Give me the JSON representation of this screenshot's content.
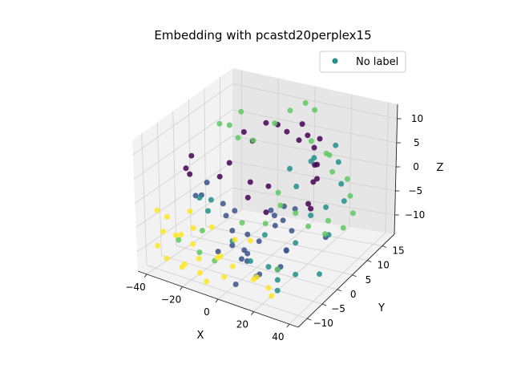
{
  "chart_data": {
    "type": "scatter",
    "projection": "3d",
    "title": "Embedding with pcastd20perplex15",
    "xlabel": "X",
    "ylabel": "Y",
    "zlabel": "Z",
    "xlim": [
      -45,
      45
    ],
    "ylim": [
      -13,
      19
    ],
    "zlim": [
      -14,
      13
    ],
    "x_ticks": [
      -40,
      -20,
      0,
      20,
      40
    ],
    "y_ticks": [
      -10,
      -5,
      0,
      5,
      10,
      15
    ],
    "z_ticks": [
      -10,
      -5,
      0,
      5,
      10
    ],
    "grid": true,
    "legend": {
      "placement": "top-right",
      "entries": [
        "No label"
      ]
    },
    "legend_marker_color": "#21918c",
    "palette": [
      "#440154",
      "#3b528b",
      "#21918c",
      "#5ec962",
      "#fde725"
    ],
    "series": [
      {
        "name": "No label",
        "points": [
          [
            -30,
            -5,
            5,
            0
          ],
          [
            -28,
            -5,
            4,
            0
          ],
          [
            -32,
            -2,
            6,
            0
          ],
          [
            -15,
            5,
            9,
            0
          ],
          [
            -12,
            6,
            7,
            0
          ],
          [
            -8,
            8,
            10,
            0
          ],
          [
            -5,
            10,
            9,
            0
          ],
          [
            0,
            10,
            8,
            0
          ],
          [
            5,
            12,
            9,
            0
          ],
          [
            8,
            12,
            7,
            0
          ],
          [
            10,
            8,
            8,
            0
          ],
          [
            15,
            10,
            6,
            0
          ],
          [
            18,
            10,
            8,
            0
          ],
          [
            20,
            8,
            4,
            0
          ],
          [
            22,
            6,
            5,
            0
          ],
          [
            25,
            5,
            3,
            0
          ],
          [
            28,
            2,
            4,
            0
          ],
          [
            30,
            0,
            0,
            0
          ],
          [
            32,
            -2,
            2,
            0
          ],
          [
            -20,
            0,
            2,
            0
          ],
          [
            -18,
            2,
            4,
            0
          ],
          [
            -10,
            4,
            0,
            0
          ],
          [
            -8,
            2,
            -2,
            0
          ],
          [
            0,
            4,
            0,
            0
          ],
          [
            2,
            2,
            -4,
            0
          ],
          [
            -25,
            -5,
            0,
            1
          ],
          [
            -22,
            -3,
            2,
            1
          ],
          [
            -20,
            -6,
            1,
            1
          ],
          [
            -15,
            -2,
            -2,
            1
          ],
          [
            -10,
            -4,
            -3,
            1
          ],
          [
            -5,
            -5,
            -5,
            1
          ],
          [
            0,
            -8,
            -6,
            1
          ],
          [
            5,
            -6,
            -8,
            1
          ],
          [
            10,
            -10,
            -5,
            1
          ],
          [
            15,
            -8,
            -10,
            1
          ],
          [
            20,
            -12,
            -8,
            1
          ],
          [
            25,
            -5,
            -6,
            1
          ],
          [
            30,
            -8,
            -4,
            1
          ],
          [
            28,
            -5,
            -2,
            1
          ],
          [
            10,
            0,
            -3,
            1
          ],
          [
            12,
            2,
            -2,
            1
          ],
          [
            -5,
            0,
            -8,
            1
          ],
          [
            -2,
            2,
            -10,
            1
          ],
          [
            2,
            5,
            -8,
            1
          ],
          [
            8,
            4,
            -6,
            1
          ],
          [
            -12,
            0,
            -4,
            1
          ],
          [
            15,
            -2,
            -12,
            1
          ],
          [
            20,
            -4,
            -10,
            1
          ],
          [
            5,
            -10,
            -12,
            1
          ],
          [
            0,
            -5,
            -10,
            1
          ],
          [
            -8,
            -8,
            -8,
            1
          ],
          [
            18,
            2,
            -2,
            1
          ],
          [
            -2,
            -2,
            -12,
            1
          ],
          [
            35,
            2,
            -6,
            1
          ],
          [
            3,
            3,
            -4,
            1
          ],
          [
            -25,
            0,
            -3,
            2
          ],
          [
            -28,
            -2,
            -2,
            2
          ],
          [
            -20,
            -4,
            -3,
            2
          ],
          [
            10,
            12,
            2,
            2
          ],
          [
            15,
            10,
            4,
            2
          ],
          [
            20,
            14,
            5,
            2
          ],
          [
            25,
            12,
            3,
            2
          ],
          [
            30,
            10,
            0,
            2
          ],
          [
            35,
            8,
            -2,
            2
          ],
          [
            25,
            8,
            -4,
            2
          ],
          [
            20,
            6,
            -5,
            2
          ],
          [
            15,
            -5,
            -10,
            2
          ],
          [
            20,
            -5,
            -12,
            2
          ],
          [
            25,
            -8,
            -12,
            2
          ],
          [
            30,
            -5,
            -10,
            2
          ],
          [
            35,
            0,
            -12,
            2
          ],
          [
            8,
            -2,
            -6,
            2
          ],
          [
            5,
            8,
            2,
            2
          ],
          [
            12,
            6,
            0,
            2
          ],
          [
            10,
            -8,
            -8,
            2
          ],
          [
            -5,
            -5,
            -7,
            2
          ],
          [
            30,
            6,
            -8,
            2
          ],
          [
            25,
            -2,
            -6,
            2
          ],
          [
            -30,
            6,
            9,
            3
          ],
          [
            -28,
            8,
            8,
            3
          ],
          [
            -25,
            10,
            10,
            3
          ],
          [
            -20,
            6,
            7,
            3
          ],
          [
            -15,
            8,
            6,
            3
          ],
          [
            -10,
            12,
            8,
            3
          ],
          [
            -5,
            14,
            10,
            3
          ],
          [
            0,
            16,
            11,
            3
          ],
          [
            5,
            16,
            10,
            3
          ],
          [
            10,
            12,
            6,
            3
          ],
          [
            15,
            14,
            3,
            3
          ],
          [
            20,
            12,
            4,
            3
          ],
          [
            25,
            10,
            2,
            3
          ],
          [
            30,
            12,
            0,
            3
          ],
          [
            35,
            10,
            -2,
            3
          ],
          [
            40,
            8,
            -4,
            3
          ],
          [
            38,
            6,
            -6,
            3
          ],
          [
            33,
            4,
            -4,
            3
          ],
          [
            28,
            6,
            -8,
            3
          ],
          [
            22,
            4,
            -6,
            3
          ],
          [
            15,
            4,
            -4,
            3
          ],
          [
            10,
            2,
            -2,
            3
          ],
          [
            5,
            0,
            -5,
            3
          ],
          [
            -10,
            -8,
            -10,
            3
          ],
          [
            -15,
            -10,
            -8,
            3
          ],
          [
            -20,
            -6,
            -6,
            3
          ],
          [
            -30,
            -8,
            -8,
            3
          ],
          [
            20,
            -5,
            -10,
            3
          ],
          [
            2,
            6,
            -2,
            3
          ],
          [
            -8,
            0,
            -6,
            3
          ],
          [
            -38,
            -10,
            -2,
            4
          ],
          [
            -36,
            -8,
            -4,
            4
          ],
          [
            -35,
            -10,
            -6,
            4
          ],
          [
            -32,
            -6,
            -8,
            4
          ],
          [
            -35,
            -12,
            -8,
            4
          ],
          [
            -30,
            -12,
            -10,
            4
          ],
          [
            -25,
            -10,
            -12,
            4
          ],
          [
            -20,
            -12,
            -10,
            4
          ],
          [
            -22,
            -8,
            -8,
            4
          ],
          [
            -15,
            -10,
            -12,
            4
          ],
          [
            -12,
            -12,
            -8,
            4
          ],
          [
            -10,
            -6,
            -10,
            4
          ],
          [
            -5,
            -10,
            -8,
            4
          ],
          [
            0,
            -8,
            -10,
            4
          ],
          [
            5,
            -5,
            -6,
            4
          ],
          [
            10,
            -6,
            -12,
            4
          ],
          [
            15,
            -10,
            -10,
            4
          ],
          [
            20,
            -8,
            -12,
            4
          ],
          [
            -25,
            -6,
            -6,
            4
          ],
          [
            -18,
            -4,
            -6,
            4
          ],
          [
            -30,
            -4,
            -4,
            4
          ],
          [
            -28,
            -10,
            -6,
            4
          ],
          [
            -8,
            -12,
            -12,
            4
          ],
          [
            2,
            -12,
            -10,
            4
          ],
          [
            25,
            -10,
            -12,
            4
          ],
          [
            -2,
            -6,
            -6,
            4
          ]
        ]
      }
    ]
  }
}
